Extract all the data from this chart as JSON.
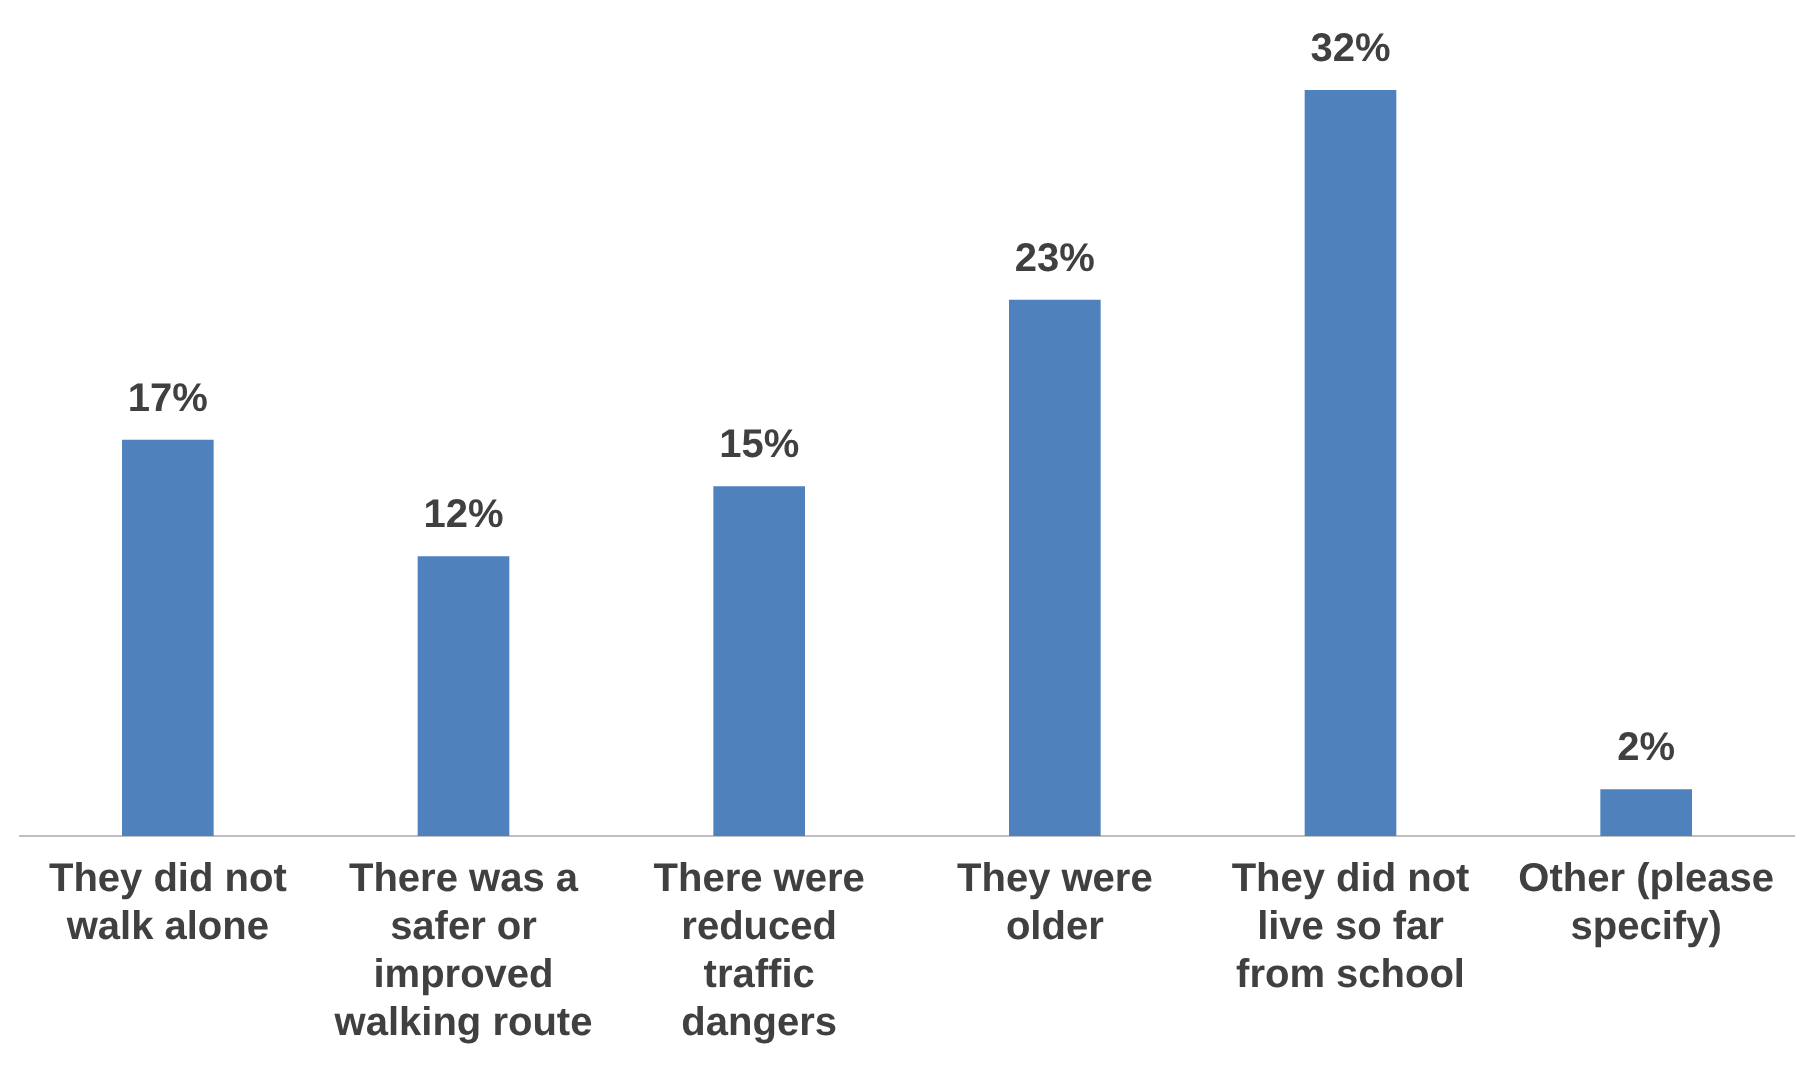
{
  "chart_data": {
    "type": "bar",
    "categories": [
      "They did not walk alone",
      "There was a safer or improved walking route",
      "There were reduced traffic dangers",
      "They were older",
      "They did not live so far from school",
      "Other (please specify)"
    ],
    "values": [
      17,
      12,
      15,
      23,
      32,
      2
    ],
    "value_labels": [
      "17%",
      "12%",
      "15%",
      "23%",
      "32%",
      "2%"
    ],
    "color": "#4f81bd",
    "grid": false,
    "legend": false
  }
}
